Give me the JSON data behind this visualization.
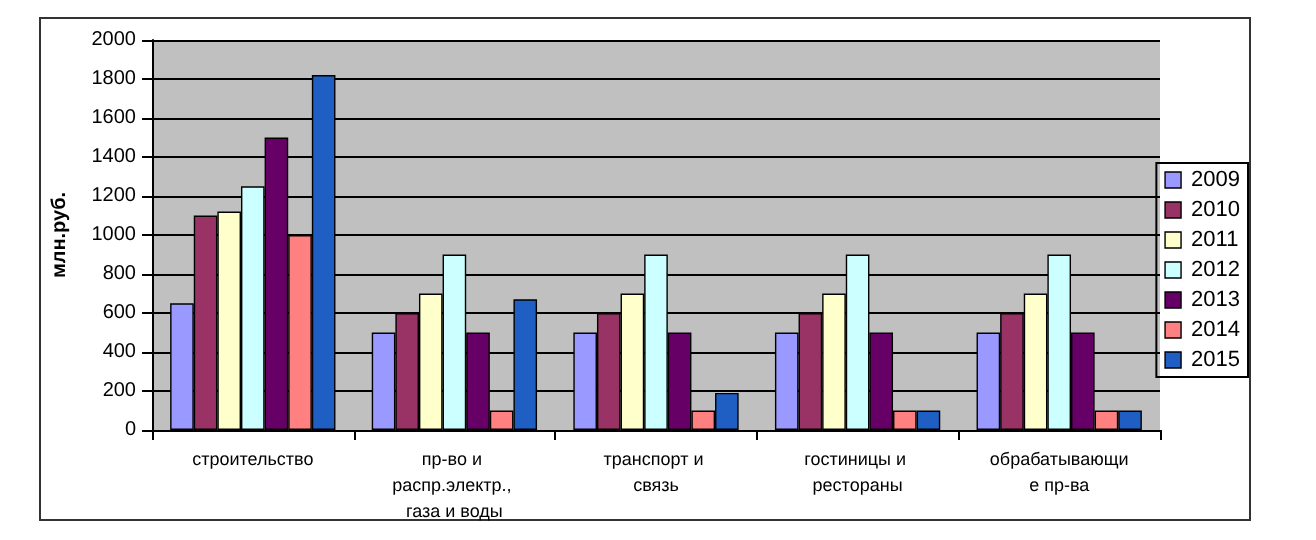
{
  "chart_data": {
    "type": "bar",
    "ylabel": "млн.руб.",
    "categories": [
      "строительство",
      "пр-во и распр.электр., газа и воды",
      "транспорт и связь",
      "гостиницы и рестораны",
      "обрабатывающие пр-ва"
    ],
    "series": [
      {
        "name": "2009",
        "color": "#9999ff",
        "values": [
          650,
          500,
          500,
          500,
          500
        ]
      },
      {
        "name": "2010",
        "color": "#993366",
        "values": [
          1100,
          600,
          600,
          600,
          600
        ]
      },
      {
        "name": "2011",
        "color": "#ffffcc",
        "values": [
          1120,
          700,
          700,
          700,
          700
        ]
      },
      {
        "name": "2012",
        "color": "#ccffff",
        "values": [
          1250,
          900,
          900,
          900,
          900
        ]
      },
      {
        "name": "2013",
        "color": "#660066",
        "values": [
          1500,
          500,
          500,
          500,
          500
        ]
      },
      {
        "name": "2014",
        "color": "#ff8080",
        "values": [
          1000,
          100,
          100,
          100,
          100
        ]
      },
      {
        "name": "2015",
        "color": "#1f5fc4",
        "values": [
          1820,
          670,
          190,
          100,
          100
        ]
      }
    ],
    "ylim": [
      0,
      2000
    ],
    "yticks": [
      0,
      200,
      400,
      600,
      800,
      1000,
      1200,
      1400,
      1600,
      1800,
      2000
    ],
    "grid": "y",
    "legend": "right"
  }
}
